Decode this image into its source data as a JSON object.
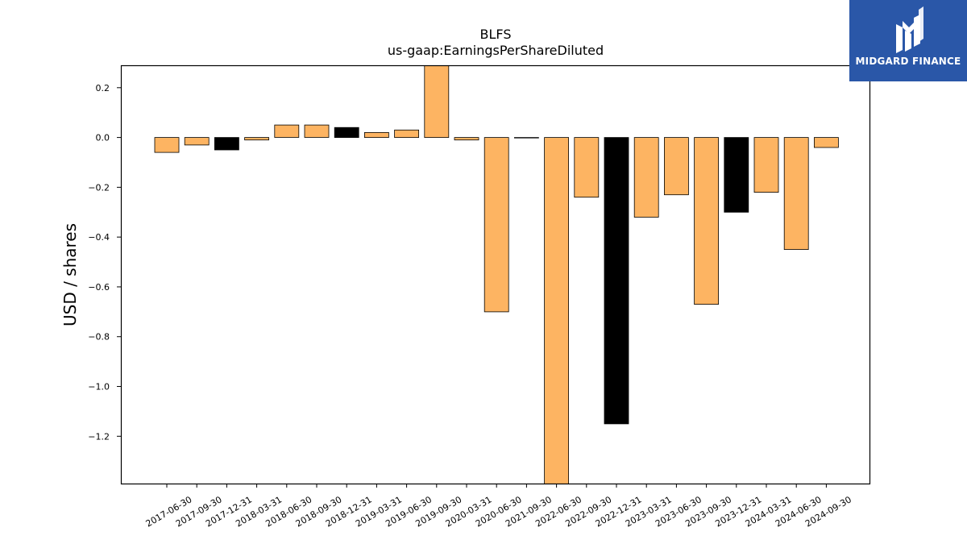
{
  "logo": {
    "text": "MIDGARD FINANCE",
    "icon": "midgard-logo-icon",
    "background": "#2a57a8"
  },
  "chart_data": {
    "type": "bar",
    "title": "BLFS",
    "subtitle": "us-gaap:EarningsPerShareDiluted",
    "xlabel": "",
    "ylabel": "USD / shares",
    "ylim": [
      -1.39,
      0.29
    ],
    "yticks": [
      0.2,
      0.0,
      -0.2,
      -0.4,
      -0.6,
      -0.8,
      -1.0,
      -1.2
    ],
    "ytick_labels": [
      "0.2",
      "0.0",
      "−0.2",
      "−0.4",
      "−0.6",
      "−0.8",
      "−1.0",
      "−1.2"
    ],
    "grid": false,
    "colors": {
      "quarter": "#fdb462",
      "annual": "#000000",
      "edge": "#000000"
    },
    "categories": [
      "2017-06-30",
      "2017-09-30",
      "2017-12-31",
      "2018-03-31",
      "2018-06-30",
      "2018-09-30",
      "2018-12-31",
      "2019-03-31",
      "2019-06-30",
      "2019-09-30",
      "2020-03-31",
      "2020-06-30",
      "2021-09-30",
      "2022-06-30",
      "2022-09-30",
      "2022-12-31",
      "2023-03-31",
      "2023-06-30",
      "2023-09-30",
      "2023-12-31",
      "2024-03-31",
      "2024-06-30",
      "2024-09-30"
    ],
    "values": [
      -0.06,
      -0.03,
      -0.05,
      -0.01,
      0.05,
      0.05,
      0.04,
      0.02,
      0.03,
      0.35,
      -0.01,
      -0.7,
      0.0,
      -1.45,
      -0.24,
      -1.15,
      -0.32,
      -0.23,
      -0.67,
      -0.3,
      -0.22,
      -0.45,
      -0.04
    ],
    "highlight": [
      false,
      false,
      true,
      false,
      false,
      false,
      true,
      false,
      false,
      false,
      false,
      false,
      false,
      false,
      false,
      true,
      false,
      false,
      false,
      true,
      false,
      false,
      false
    ]
  }
}
